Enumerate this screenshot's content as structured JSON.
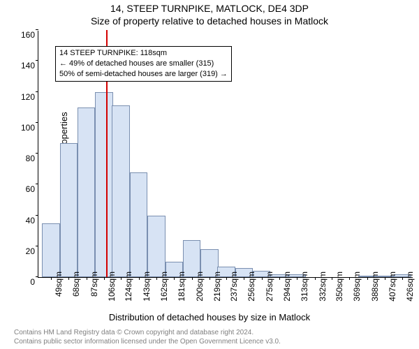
{
  "title_line1": "14, STEEP TURNPIKE, MATLOCK, DE4 3DP",
  "title_line2": "Size of property relative to detached houses in Matlock",
  "ylabel": "Number of detached properties",
  "xlabel": "Distribution of detached houses by size in Matlock",
  "footer_line1": "Contains HM Land Registry data © Crown copyright and database right 2024.",
  "footer_line2": "Contains public sector information licensed under the Open Government Licence v3.0.",
  "chart": {
    "type": "histogram",
    "ymin": 0,
    "ymax": 160,
    "ytick_step": 20,
    "bar_fill": "#d7e3f4",
    "bar_border": "#7a8fb0",
    "vline_color": "#d40000",
    "vline_x": 118,
    "grid_color": "#e8e8e8",
    "bar_width_units": 19,
    "bars": [
      {
        "x": 49,
        "h": 35
      },
      {
        "x": 68,
        "h": 87
      },
      {
        "x": 87,
        "h": 110
      },
      {
        "x": 106,
        "h": 120
      },
      {
        "x": 124,
        "h": 111
      },
      {
        "x": 143,
        "h": 68
      },
      {
        "x": 162,
        "h": 40
      },
      {
        "x": 181,
        "h": 10
      },
      {
        "x": 200,
        "h": 24
      },
      {
        "x": 219,
        "h": 18
      },
      {
        "x": 237,
        "h": 7
      },
      {
        "x": 256,
        "h": 6
      },
      {
        "x": 275,
        "h": 4
      },
      {
        "x": 294,
        "h": 2
      },
      {
        "x": 313,
        "h": 2
      },
      {
        "x": 332,
        "h": 0
      },
      {
        "x": 350,
        "h": 0
      },
      {
        "x": 369,
        "h": 0
      },
      {
        "x": 388,
        "h": 1
      },
      {
        "x": 407,
        "h": 1
      },
      {
        "x": 426,
        "h": 2
      }
    ],
    "xticks": [
      49,
      68,
      87,
      106,
      124,
      143,
      162,
      181,
      200,
      219,
      237,
      256,
      275,
      294,
      313,
      332,
      350,
      369,
      388,
      407,
      426
    ],
    "xtick_suffix": "sqm",
    "xmin": 45,
    "xmax": 445,
    "annotation": {
      "line1": "14 STEEP TURNPIKE: 118sqm",
      "line2": "← 49% of detached houses are smaller (315)",
      "line3": "50% of semi-detached houses are larger (319) →"
    }
  }
}
